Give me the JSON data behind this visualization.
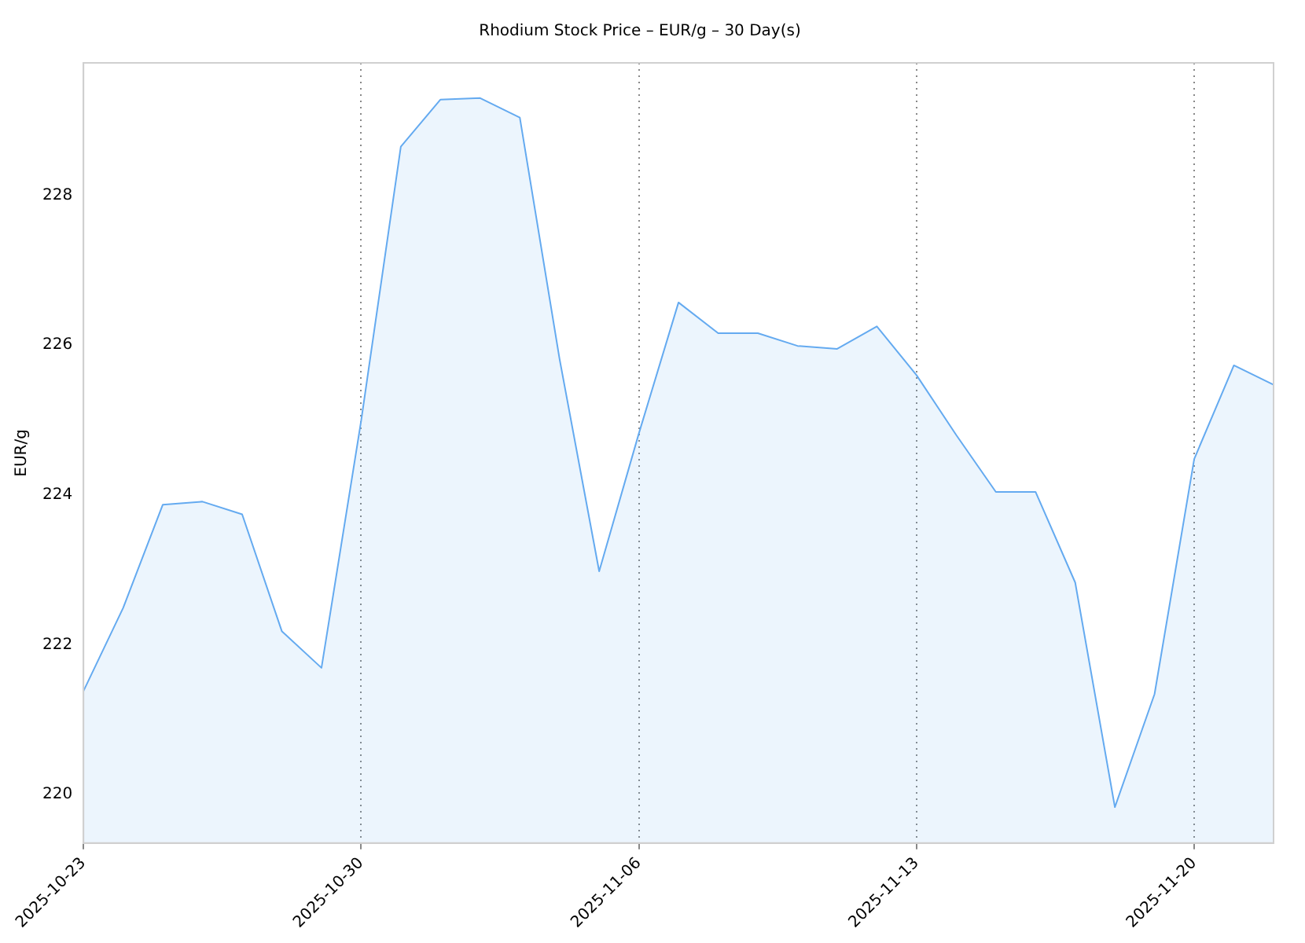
{
  "chart_data": {
    "type": "area",
    "title": "Rhodium Stock Price – EUR/g – 30 Day(s)",
    "ylabel": "EUR/g",
    "x": [
      "2025-10-23",
      "2025-10-24",
      "2025-10-25",
      "2025-10-26",
      "2025-10-27",
      "2025-10-28",
      "2025-10-29",
      "2025-10-30",
      "2025-10-31",
      "2025-11-01",
      "2025-11-02",
      "2025-11-03",
      "2025-11-04",
      "2025-11-05",
      "2025-11-06",
      "2025-11-07",
      "2025-11-08",
      "2025-11-09",
      "2025-11-10",
      "2025-11-11",
      "2025-11-12",
      "2025-11-13",
      "2025-11-14",
      "2025-11-15",
      "2025-11-16",
      "2025-11-17",
      "2025-11-18",
      "2025-11-19",
      "2025-11-20",
      "2025-11-21",
      "2025-11-22"
    ],
    "series": [
      {
        "color": "#64aaf0",
        "values": [
          221.38,
          222.49,
          223.87,
          223.91,
          223.74,
          222.18,
          221.69,
          224.99,
          228.65,
          229.28,
          229.3,
          229.04,
          225.82,
          222.98,
          224.82,
          226.57,
          226.16,
          226.16,
          225.99,
          225.95,
          226.25,
          225.6,
          224.8,
          224.04,
          224.04,
          222.83,
          219.83,
          221.34,
          224.48,
          225.73,
          225.47
        ]
      }
    ],
    "xlim": [
      "2025-10-23",
      "2025-11-22"
    ],
    "xticks": [
      "2025-10-23",
      "2025-10-30",
      "2025-11-06",
      "2025-11-13",
      "2025-11-20"
    ],
    "ylim": [
      219.35,
      229.77
    ],
    "yticks": [
      220,
      222,
      224,
      226,
      228
    ],
    "grid": "x",
    "legend": false
  }
}
